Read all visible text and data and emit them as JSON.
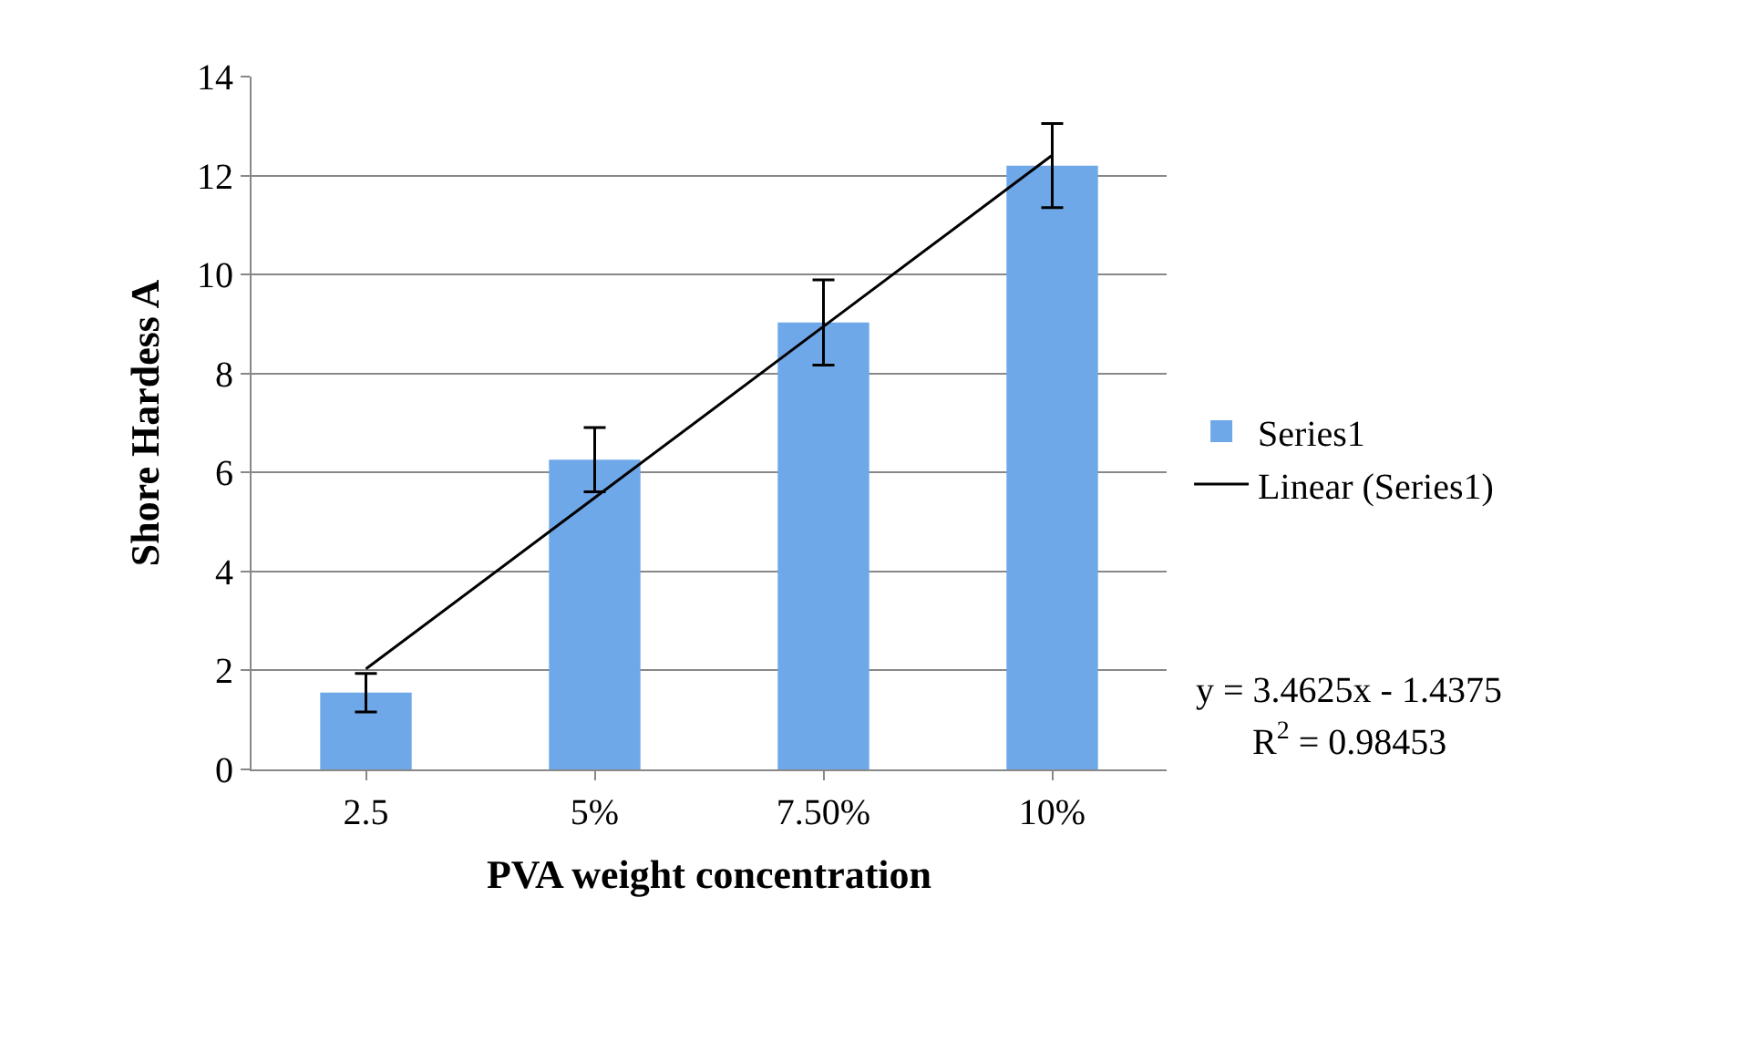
{
  "chart_data": {
    "type": "bar",
    "xlabel": "PVA weight concentration",
    "ylabel": "Shore Hardess A",
    "categories": [
      "2.5",
      "5%",
      "7.50%",
      "10%"
    ],
    "series": [
      {
        "name": "Series1",
        "color": "#6fa8e8",
        "values": [
          1.55,
          6.26,
          9.03,
          12.2
        ],
        "errors": [
          0.39,
          0.65,
          0.86,
          0.85
        ]
      },
      {
        "name": "Linear (Series1)",
        "type": "line",
        "color": "#000000",
        "values": [
          2.03,
          5.49,
          8.95,
          12.41
        ]
      }
    ],
    "ylim": [
      0,
      14
    ],
    "yticks": [
      0,
      2,
      4,
      6,
      8,
      10,
      12,
      14
    ],
    "grid": "y",
    "legend": "right",
    "annotations": [
      "y = 3.4625x - 1.4375",
      "R$^{2}$ = 0.98453"
    ]
  }
}
